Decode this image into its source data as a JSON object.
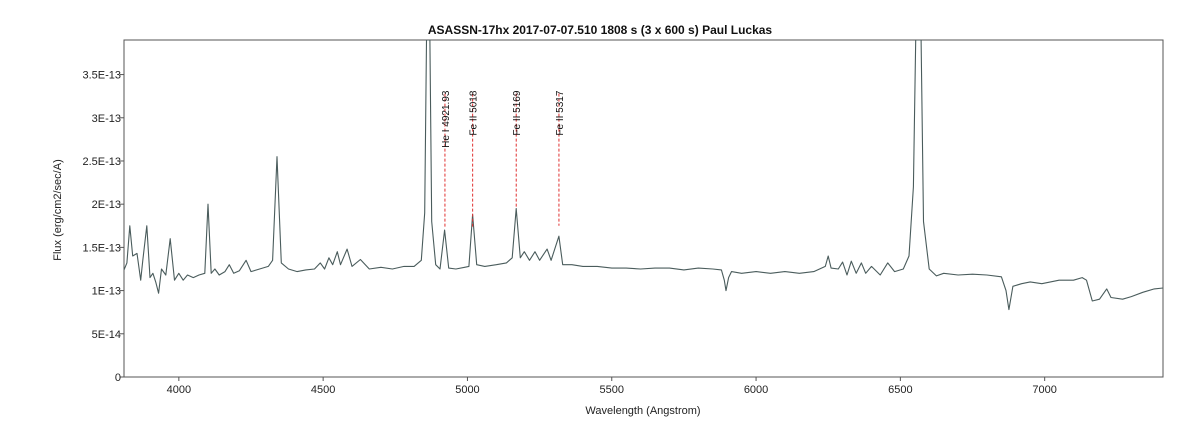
{
  "chart_data": {
    "type": "line",
    "title": "ASASSN-17hx   2017-07-07.510   1808 s (3 x 600 s)   Paul Luckas",
    "xlabel": "Wavelength (Angstrom)",
    "ylabel": "Flux (erg/cm2/sec/A)",
    "xlim": [
      3810,
      7410
    ],
    "ylim": [
      0,
      3.9e-13
    ],
    "grid": false,
    "x_ticks": [
      4000,
      4500,
      5000,
      5500,
      6000,
      6500,
      7000
    ],
    "x_tick_labels": [
      "4000",
      "4500",
      "5000",
      "5500",
      "6000",
      "6500",
      "7000"
    ],
    "y_ticks": [
      0,
      5e-14,
      1e-13,
      1.5e-13,
      2e-13,
      2.5e-13,
      3e-13,
      3.5e-13
    ],
    "y_tick_labels": [
      "0",
      "5E-14",
      "1E-13",
      "1.5E-13",
      "2E-13",
      "2.5E-13",
      "3E-13",
      "3.5E-13"
    ],
    "series_color": "#4a5c5c",
    "marker_color": "#e03030",
    "line_markers": [
      {
        "label": "He I 4921.93",
        "x": 4922,
        "y_top": 3.28e-13,
        "y_bottom": 1.72e-13
      },
      {
        "label": "Fe II 5018",
        "x": 5018,
        "y_top": 3.28e-13,
        "y_bottom": 1.72e-13
      },
      {
        "label": "Fe II 5169",
        "x": 5169,
        "y_top": 3.28e-13,
        "y_bottom": 1.95e-13
      },
      {
        "label": "Fe II 5317",
        "x": 5317,
        "y_top": 3.28e-13,
        "y_bottom": 1.75e-13
      }
    ],
    "series": [
      {
        "values": [
          [
            3810,
            1.24e-13
          ],
          [
            3820,
            1.32e-13
          ],
          [
            3830,
            1.75e-13
          ],
          [
            3840,
            1.4e-13
          ],
          [
            3855,
            1.43e-13
          ],
          [
            3868,
            1.12e-13
          ],
          [
            3875,
            1.35e-13
          ],
          [
            3889,
            1.75e-13
          ],
          [
            3900,
            1.15e-13
          ],
          [
            3910,
            1.2e-13
          ],
          [
            3920,
            1.1e-13
          ],
          [
            3930,
            9.7e-14
          ],
          [
            3940,
            1.25e-13
          ],
          [
            3955,
            1.18e-13
          ],
          [
            3970,
            1.6e-13
          ],
          [
            3985,
            1.12e-13
          ],
          [
            4000,
            1.2e-13
          ],
          [
            4015,
            1.12e-13
          ],
          [
            4030,
            1.18e-13
          ],
          [
            4050,
            1.15e-13
          ],
          [
            4070,
            1.18e-13
          ],
          [
            4090,
            1.2e-13
          ],
          [
            4101,
            2e-13
          ],
          [
            4112,
            1.2e-13
          ],
          [
            4125,
            1.25e-13
          ],
          [
            4140,
            1.18e-13
          ],
          [
            4160,
            1.22e-13
          ],
          [
            4175,
            1.3e-13
          ],
          [
            4190,
            1.2e-13
          ],
          [
            4210,
            1.23e-13
          ],
          [
            4233,
            1.35e-13
          ],
          [
            4250,
            1.22e-13
          ],
          [
            4280,
            1.25e-13
          ],
          [
            4310,
            1.28e-13
          ],
          [
            4325,
            1.35e-13
          ],
          [
            4340,
            2.55e-13
          ],
          [
            4355,
            1.32e-13
          ],
          [
            4380,
            1.25e-13
          ],
          [
            4410,
            1.22e-13
          ],
          [
            4440,
            1.24e-13
          ],
          [
            4470,
            1.25e-13
          ],
          [
            4490,
            1.32e-13
          ],
          [
            4505,
            1.25e-13
          ],
          [
            4520,
            1.38e-13
          ],
          [
            4533,
            1.3e-13
          ],
          [
            4549,
            1.45e-13
          ],
          [
            4560,
            1.3e-13
          ],
          [
            4583,
            1.48e-13
          ],
          [
            4600,
            1.28e-13
          ],
          [
            4629,
            1.36e-13
          ],
          [
            4660,
            1.25e-13
          ],
          [
            4700,
            1.27e-13
          ],
          [
            4740,
            1.25e-13
          ],
          [
            4780,
            1.28e-13
          ],
          [
            4815,
            1.28e-13
          ],
          [
            4840,
            1.35e-13
          ],
          [
            4852,
            1.9e-13
          ],
          [
            4858,
            3.9e-13
          ],
          [
            4870,
            3.9e-13
          ],
          [
            4876,
            1.8e-13
          ],
          [
            4890,
            1.3e-13
          ],
          [
            4905,
            1.25e-13
          ],
          [
            4921,
            1.7e-13
          ],
          [
            4935,
            1.26e-13
          ],
          [
            4960,
            1.25e-13
          ],
          [
            4990,
            1.27e-13
          ],
          [
            5005,
            1.28e-13
          ],
          [
            5018,
            1.88e-13
          ],
          [
            5032,
            1.3e-13
          ],
          [
            5060,
            1.28e-13
          ],
          [
            5100,
            1.3e-13
          ],
          [
            5135,
            1.32e-13
          ],
          [
            5155,
            1.38e-13
          ],
          [
            5169,
            1.95e-13
          ],
          [
            5183,
            1.38e-13
          ],
          [
            5197,
            1.45e-13
          ],
          [
            5215,
            1.35e-13
          ],
          [
            5234,
            1.45e-13
          ],
          [
            5250,
            1.35e-13
          ],
          [
            5276,
            1.48e-13
          ],
          [
            5290,
            1.35e-13
          ],
          [
            5317,
            1.63e-13
          ],
          [
            5330,
            1.3e-13
          ],
          [
            5362,
            1.3e-13
          ],
          [
            5400,
            1.28e-13
          ],
          [
            5450,
            1.28e-13
          ],
          [
            5500,
            1.26e-13
          ],
          [
            5550,
            1.26e-13
          ],
          [
            5600,
            1.25e-13
          ],
          [
            5650,
            1.26e-13
          ],
          [
            5700,
            1.26e-13
          ],
          [
            5750,
            1.24e-13
          ],
          [
            5800,
            1.26e-13
          ],
          [
            5850,
            1.25e-13
          ],
          [
            5880,
            1.24e-13
          ],
          [
            5890,
            1.12e-13
          ],
          [
            5896,
            1e-13
          ],
          [
            5905,
            1.15e-13
          ],
          [
            5915,
            1.22e-13
          ],
          [
            5950,
            1.2e-13
          ],
          [
            6000,
            1.22e-13
          ],
          [
            6050,
            1.2e-13
          ],
          [
            6100,
            1.22e-13
          ],
          [
            6150,
            1.2e-13
          ],
          [
            6200,
            1.22e-13
          ],
          [
            6240,
            1.28e-13
          ],
          [
            6250,
            1.4e-13
          ],
          [
            6260,
            1.26e-13
          ],
          [
            6285,
            1.25e-13
          ],
          [
            6300,
            1.33e-13
          ],
          [
            6315,
            1.18e-13
          ],
          [
            6330,
            1.34e-13
          ],
          [
            6347,
            1.2e-13
          ],
          [
            6365,
            1.32e-13
          ],
          [
            6380,
            1.2e-13
          ],
          [
            6400,
            1.28e-13
          ],
          [
            6430,
            1.18e-13
          ],
          [
            6456,
            1.32e-13
          ],
          [
            6480,
            1.22e-13
          ],
          [
            6510,
            1.25e-13
          ],
          [
            6530,
            1.4e-13
          ],
          [
            6545,
            2.2e-13
          ],
          [
            6553,
            3.9e-13
          ],
          [
            6572,
            3.9e-13
          ],
          [
            6580,
            1.8e-13
          ],
          [
            6600,
            1.25e-13
          ],
          [
            6625,
            1.17e-13
          ],
          [
            6650,
            1.2e-13
          ],
          [
            6700,
            1.18e-13
          ],
          [
            6750,
            1.19e-13
          ],
          [
            6800,
            1.18e-13
          ],
          [
            6850,
            1.16e-13
          ],
          [
            6866,
            1e-13
          ],
          [
            6876,
            7.8e-14
          ],
          [
            6890,
            1.05e-13
          ],
          [
            6920,
            1.08e-13
          ],
          [
            6950,
            1.1e-13
          ],
          [
            6990,
            1.08e-13
          ],
          [
            7050,
            1.12e-13
          ],
          [
            7100,
            1.12e-13
          ],
          [
            7130,
            1.15e-13
          ],
          [
            7145,
            1.12e-13
          ],
          [
            7165,
            8.8e-14
          ],
          [
            7190,
            9e-14
          ],
          [
            7215,
            1.02e-13
          ],
          [
            7230,
            9.2e-14
          ],
          [
            7270,
            9e-14
          ],
          [
            7300,
            9.3e-14
          ],
          [
            7340,
            9.8e-14
          ],
          [
            7380,
            1.02e-13
          ],
          [
            7410,
            1.03e-13
          ]
        ]
      }
    ]
  }
}
